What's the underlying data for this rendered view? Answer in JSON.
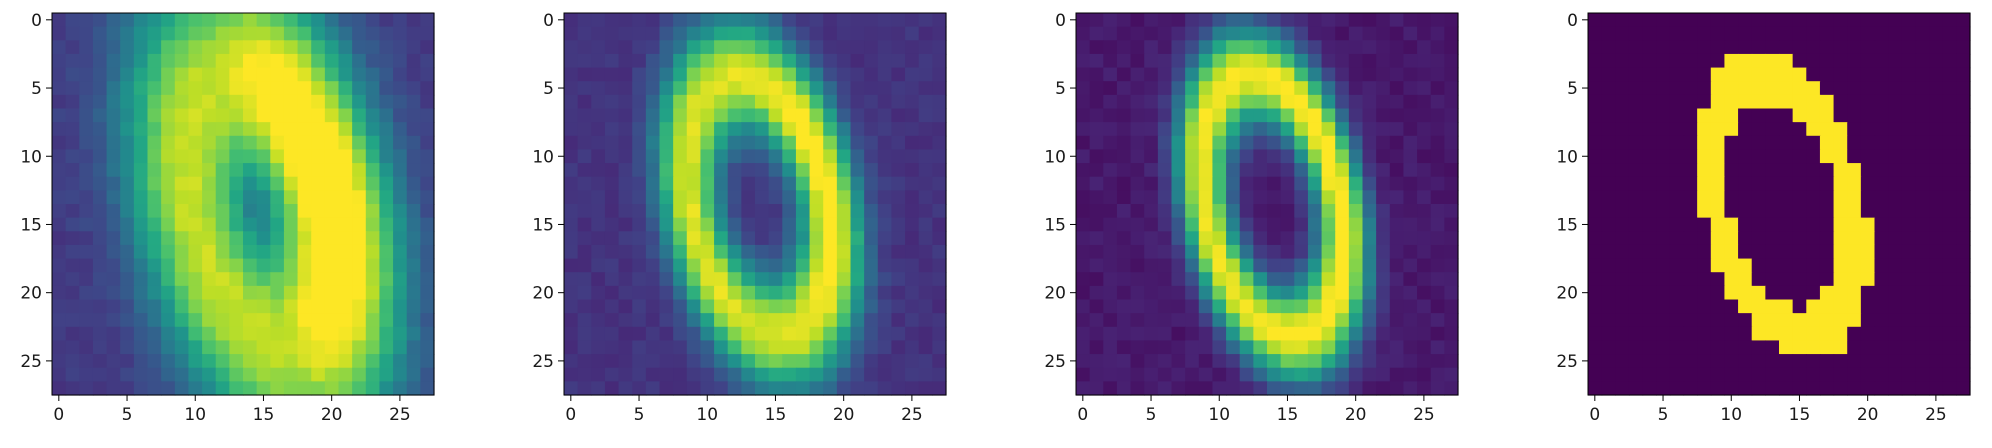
{
  "chart_data": [
    {
      "type": "heatmap",
      "title": "",
      "grid": false,
      "shape": [
        28,
        28
      ],
      "xlim": [
        -0.5,
        27.5
      ],
      "ylim": [
        27.5,
        -0.5
      ],
      "xticks": [
        0,
        5,
        10,
        15,
        20,
        25
      ],
      "yticks": [
        0,
        5,
        10,
        15,
        20,
        25
      ],
      "colormap": "viridis",
      "background_value": 0.17,
      "description_values": "blurred reconstruction of digit 0; bright stroke strongest on the right side (max ~1.0 around row 14-15, col 18), dark hole around row 9-10, col 15",
      "stroke": {
        "cx": 14.6,
        "cy": 14.0,
        "rx": 4.8,
        "ry": 9.8,
        "tilt_deg": 14,
        "width": 2.4,
        "blur": 2.2,
        "intensity": 0.9,
        "right_boost": 0.35
      }
    },
    {
      "type": "heatmap",
      "title": "",
      "grid": false,
      "shape": [
        28,
        28
      ],
      "xlim": [
        -0.5,
        27.5
      ],
      "ylim": [
        27.5,
        -0.5
      ],
      "xticks": [
        0,
        5,
        10,
        15,
        20,
        25
      ],
      "yticks": [
        0,
        5,
        10,
        15,
        20,
        25
      ],
      "colormap": "viridis",
      "background_value": 0.15,
      "stroke": {
        "cx": 13.8,
        "cy": 13.6,
        "rx": 5.0,
        "ry": 9.6,
        "tilt_deg": 12,
        "width": 1.4,
        "blur": 0.9,
        "intensity": 0.95,
        "right_boost": 0.1
      }
    },
    {
      "type": "heatmap",
      "title": "",
      "grid": false,
      "shape": [
        28,
        28
      ],
      "xlim": [
        -0.5,
        27.5
      ],
      "ylim": [
        27.5,
        -0.5
      ],
      "xticks": [
        0,
        5,
        10,
        15,
        20,
        25
      ],
      "yticks": [
        0,
        5,
        10,
        15,
        20,
        25
      ],
      "colormap": "viridis",
      "background_value": 0.07,
      "stroke": {
        "cx": 13.9,
        "cy": 13.6,
        "rx": 4.9,
        "ry": 9.7,
        "tilt_deg": 12,
        "width": 1.3,
        "blur": 0.6,
        "intensity": 1.0,
        "right_boost": 0.05
      }
    },
    {
      "type": "heatmap",
      "title": "",
      "grid": false,
      "shape": [
        28,
        28
      ],
      "xlim": [
        -0.5,
        27.5
      ],
      "ylim": [
        27.5,
        -0.5
      ],
      "xticks": [
        0,
        5,
        10,
        15,
        20,
        25
      ],
      "yticks": [
        0,
        5,
        10,
        15,
        20,
        25
      ],
      "colormap": "viridis",
      "background_value": 0.0,
      "stroke": {
        "cx": 13.8,
        "cy": 13.6,
        "rx": 4.9,
        "ry": 9.6,
        "tilt_deg": 13,
        "width": 1.2,
        "blur": 0.0,
        "intensity": 1.0,
        "right_boost": 0.0
      }
    }
  ]
}
